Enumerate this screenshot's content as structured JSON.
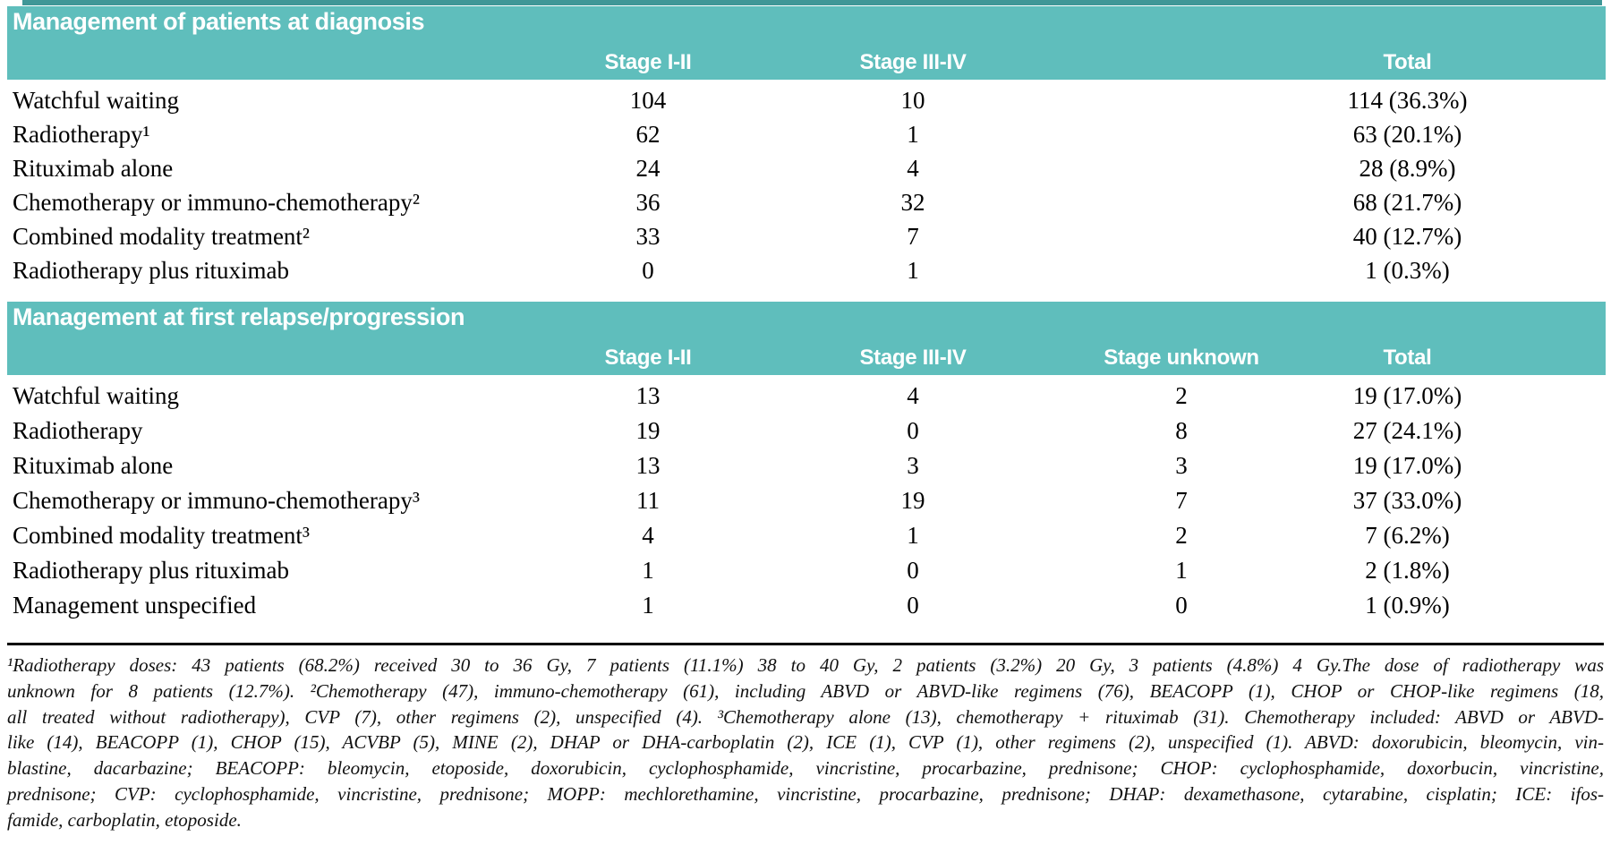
{
  "colors": {
    "accent_teal": "#5fbebc",
    "accent_dark_teal": "#3f9797",
    "header_text": "#ffffff",
    "body_text": "#000000"
  },
  "sections": [
    {
      "title": "Management of patients at diagnosis",
      "columns": {
        "stage_1_2": "Stage I-II",
        "stage_3_4": "Stage III-IV",
        "stage_unknown": "",
        "total": "Total"
      },
      "rows": [
        {
          "label": "Watchful waiting",
          "stage_1_2": "104",
          "stage_3_4": "10",
          "stage_unknown": "",
          "total": "114 (36.3%)"
        },
        {
          "label": "Radiotherapy¹",
          "stage_1_2": "62",
          "stage_3_4": "1",
          "stage_unknown": "",
          "total": "63 (20.1%)"
        },
        {
          "label": "Rituximab alone",
          "stage_1_2": "24",
          "stage_3_4": "4",
          "stage_unknown": "",
          "total": "28 (8.9%)"
        },
        {
          "label": "Chemotherapy or immuno-chemotherapy²",
          "stage_1_2": "36",
          "stage_3_4": "32",
          "stage_unknown": "",
          "total": "68 (21.7%)"
        },
        {
          "label": "Combined modality treatment²",
          "stage_1_2": "33",
          "stage_3_4": "7",
          "stage_unknown": "",
          "total": "40 (12.7%)"
        },
        {
          "label": "Radiotherapy plus rituximab",
          "stage_1_2": "0",
          "stage_3_4": "1",
          "stage_unknown": "",
          "total": "1 (0.3%)"
        }
      ]
    },
    {
      "title": "Management at first relapse/progression",
      "columns": {
        "stage_1_2": "Stage I-II",
        "stage_3_4": "Stage III-IV",
        "stage_unknown": "Stage unknown",
        "total": "Total"
      },
      "rows": [
        {
          "label": "Watchful waiting",
          "stage_1_2": "13",
          "stage_3_4": "4",
          "stage_unknown": "2",
          "total": "19 (17.0%)"
        },
        {
          "label": "Radiotherapy",
          "stage_1_2": "19",
          "stage_3_4": "0",
          "stage_unknown": "8",
          "total": "27 (24.1%)"
        },
        {
          "label": "Rituximab alone",
          "stage_1_2": "13",
          "stage_3_4": "3",
          "stage_unknown": "3",
          "total": "19 (17.0%)"
        },
        {
          "label": "Chemotherapy or immuno-chemotherapy³",
          "stage_1_2": "11",
          "stage_3_4": "19",
          "stage_unknown": "7",
          "total": "37 (33.0%)"
        },
        {
          "label": "Combined modality treatment³",
          "stage_1_2": "4",
          "stage_3_4": "1",
          "stage_unknown": "2",
          "total": "7 (6.2%)"
        },
        {
          "label": "Radiotherapy plus rituximab",
          "stage_1_2": "1",
          "stage_3_4": "0",
          "stage_unknown": "1",
          "total": "2 (1.8%)"
        },
        {
          "label": "Management unspecified",
          "stage_1_2": "1",
          "stage_3_4": "0",
          "stage_unknown": "0",
          "total": "1 (0.9%)"
        }
      ]
    }
  ],
  "footnote_lines": [
    "¹Radiotherapy doses: 43 patients (68.2%) received 30 to 36 Gy, 7 patients (11.1%) 38 to 40 Gy, 2 patients (3.2%) 20 Gy, 3 patients (4.8%) 4 Gy.The dose of radiotherapy was",
    "unknown for 8 patients (12.7%). ²Chemotherapy (47), immuno-chemotherapy (61), including ABVD or ABVD-like regimens (76), BEACOPP (1), CHOP or CHOP-like regimens (18,",
    "all treated without radiotherapy), CVP (7), other regimens (2), unspecified (4). ³Chemotherapy alone (13), chemotherapy + rituximab (31). Chemotherapy included: ABVD or ABVD-",
    "like (14), BEACOPP (1), CHOP (15), ACVBP (5), MINE (2), DHAP or DHA-carboplatin (2), ICE (1), CVP (1), other regimens (2), unspecified (1). ABVD: doxorubicin, bleomycin, vin-",
    "blastine, dacarbazine; BEACOPP: bleomycin, etoposide, doxorubicin, cyclophosphamide, vincristine, procarbazine, prednisone; CHOP: cyclophosphamide, doxorbucin, vincristine,",
    "prednisone; CVP: cyclophosphamide, vincristine, prednisone; MOPP: mechlorethamine, vincristine, procarbazine, prednisone; DHAP: dexamethasone, cytarabine, cisplatin; ICE: ifos-",
    "famide, carboplatin, etoposide."
  ]
}
